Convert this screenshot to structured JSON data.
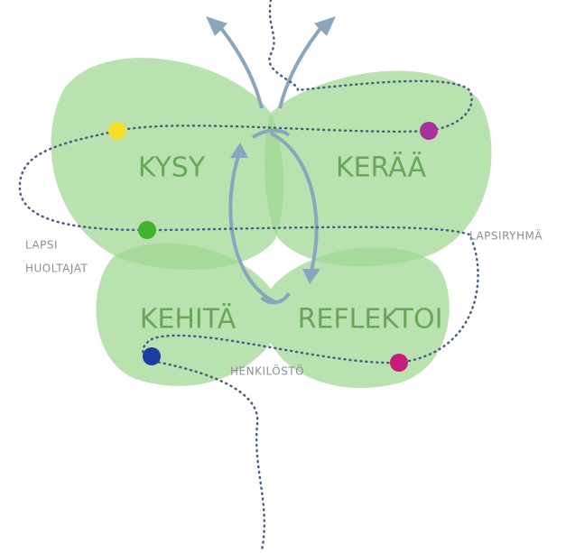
{
  "phases": [
    "KYSY",
    "KERÄÄ",
    "KEHITÄ",
    "REFLEKTOI"
  ],
  "groups": [
    "LAPSI",
    "HUOLTAJAT",
    "LAPSIRYHMÄ",
    "HENKILÖSTÖ"
  ]
}
